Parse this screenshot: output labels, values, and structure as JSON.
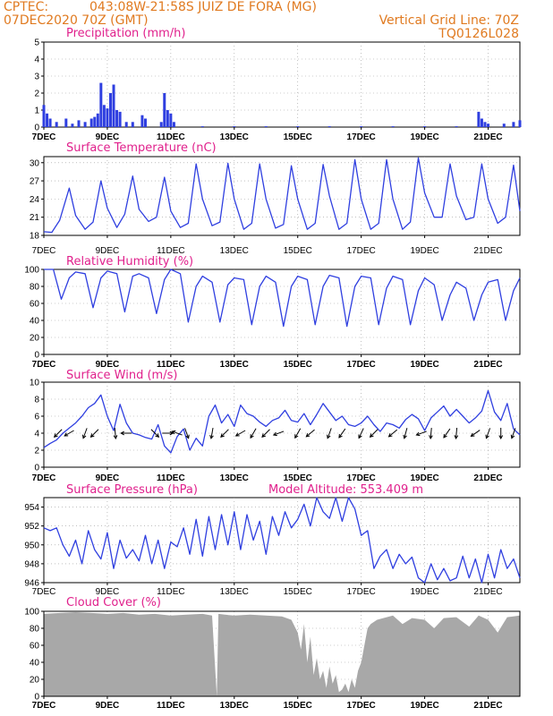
{
  "header": {
    "source": "CPTEC:",
    "location": "043:08W-21:58S  JUIZ DE FORA (MG)",
    "run": "07DEC2020 70Z (GMT)",
    "grid_line": "Vertical Grid Line: 70Z",
    "model": "TQ0126L028"
  },
  "colors": {
    "line": "#2f3fe0",
    "title": "#e0208c",
    "header": "#e07a20",
    "cloud": "#a8a8a8",
    "grid": "#999999"
  },
  "x_ticks": [
    "7DEC",
    "9DEC",
    "11DEC",
    "13DEC",
    "15DEC",
    "17DEC",
    "19DEC",
    "21DEC"
  ],
  "chart_data": [
    {
      "type": "bar",
      "title": "Precipitation (mm/h)",
      "ylim": [
        0,
        5
      ],
      "yticks": [
        0,
        1,
        2,
        3,
        4,
        5
      ],
      "x": [
        7.0,
        7.1,
        7.2,
        7.4,
        7.7,
        7.9,
        8.1,
        8.3,
        8.5,
        8.6,
        8.7,
        8.8,
        8.9,
        9.0,
        9.1,
        9.2,
        9.3,
        9.4,
        9.6,
        9.8,
        10.1,
        10.2,
        10.7,
        10.8,
        10.9,
        11.0,
        11.1,
        12.0,
        13.0,
        14.0,
        15.0,
        16.0,
        17.0,
        18.0,
        19.0,
        20.0,
        20.7,
        20.8,
        20.9,
        21.0,
        21.5,
        21.8,
        22.0
      ],
      "values": [
        1.3,
        0.8,
        0.5,
        0.3,
        0.5,
        0.2,
        0.4,
        0.3,
        0.5,
        0.6,
        0.8,
        2.6,
        1.3,
        1.1,
        2.0,
        2.5,
        1.0,
        0.9,
        0.3,
        0.3,
        0.7,
        0.5,
        0.3,
        2.0,
        1.0,
        0.8,
        0.3,
        0.05,
        0.05,
        0.05,
        0.05,
        0.05,
        0.05,
        0.05,
        0.05,
        0.05,
        0.9,
        0.5,
        0.3,
        0.2,
        0.2,
        0.3,
        0.4
      ]
    },
    {
      "type": "line",
      "title": "Surface Temperature (nC)",
      "ylim": [
        18,
        31
      ],
      "yticks": [
        18,
        21,
        24,
        27,
        30
      ],
      "x": [
        7.0,
        7.25,
        7.5,
        7.8,
        8.0,
        8.3,
        8.55,
        8.8,
        9.0,
        9.3,
        9.55,
        9.8,
        10.0,
        10.3,
        10.55,
        10.8,
        11.0,
        11.3,
        11.55,
        11.8,
        12.0,
        12.3,
        12.55,
        12.8,
        13.0,
        13.3,
        13.55,
        13.8,
        14.0,
        14.3,
        14.55,
        14.8,
        15.0,
        15.3,
        15.55,
        15.8,
        16.0,
        16.3,
        16.55,
        16.8,
        17.0,
        17.3,
        17.55,
        17.8,
        18.0,
        18.3,
        18.55,
        18.8,
        19.0,
        19.3,
        19.55,
        19.8,
        20.0,
        20.3,
        20.55,
        20.8,
        21.0,
        21.3,
        21.55,
        21.8,
        22.0
      ],
      "values": [
        18.6,
        18.5,
        20.5,
        25.8,
        21.3,
        19.0,
        20.2,
        27.0,
        22.5,
        19.3,
        21.5,
        27.8,
        22.3,
        20.3,
        21.0,
        27.6,
        22.0,
        19.3,
        20.0,
        29.8,
        24.0,
        19.6,
        20.2,
        29.9,
        24.0,
        19.0,
        20.0,
        29.8,
        24.0,
        19.2,
        19.8,
        29.5,
        24.0,
        19.0,
        20.0,
        29.7,
        24.5,
        19.0,
        20.0,
        30.5,
        24.0,
        19.0,
        20.0,
        30.5,
        24.0,
        19.0,
        20.2,
        30.8,
        25.0,
        21.0,
        21.0,
        29.8,
        24.5,
        20.6,
        21.0,
        29.8,
        24.0,
        20.0,
        21.0,
        29.6,
        22.0
      ]
    },
    {
      "type": "line",
      "title": "Relative Humidity (%)",
      "ylim": [
        0,
        100
      ],
      "yticks": [
        0,
        20,
        40,
        60,
        80,
        100
      ],
      "x": [
        7.0,
        7.3,
        7.55,
        7.8,
        8.0,
        8.3,
        8.55,
        8.8,
        9.0,
        9.3,
        9.55,
        9.8,
        10.0,
        10.3,
        10.55,
        10.8,
        11.0,
        11.3,
        11.55,
        11.8,
        12.0,
        12.3,
        12.55,
        12.8,
        13.0,
        13.3,
        13.55,
        13.8,
        14.0,
        14.3,
        14.55,
        14.8,
        15.0,
        15.3,
        15.55,
        15.8,
        16.0,
        16.3,
        16.55,
        16.8,
        17.0,
        17.3,
        17.55,
        17.8,
        18.0,
        18.3,
        18.55,
        18.8,
        19.0,
        19.3,
        19.55,
        19.8,
        20.0,
        20.3,
        20.55,
        20.8,
        21.0,
        21.3,
        21.55,
        21.8,
        22.0
      ],
      "values": [
        100,
        100,
        65,
        90,
        97,
        95,
        55,
        90,
        98,
        95,
        50,
        92,
        95,
        90,
        48,
        88,
        100,
        95,
        38,
        80,
        92,
        85,
        38,
        82,
        90,
        88,
        35,
        80,
        92,
        85,
        33,
        80,
        92,
        88,
        35,
        80,
        93,
        90,
        33,
        80,
        92,
        90,
        35,
        78,
        92,
        88,
        35,
        75,
        90,
        82,
        40,
        70,
        85,
        78,
        40,
        70,
        85,
        88,
        40,
        75,
        90
      ]
    },
    {
      "type": "line",
      "title": "Surface Wind (m/s)",
      "ylim": [
        0,
        10
      ],
      "yticks": [
        0,
        2,
        4,
        6,
        8,
        10
      ],
      "x": [
        7.0,
        7.2,
        7.4,
        7.6,
        7.8,
        8.0,
        8.2,
        8.4,
        8.6,
        8.8,
        9.0,
        9.2,
        9.4,
        9.6,
        9.8,
        10.0,
        10.2,
        10.4,
        10.6,
        10.8,
        11.0,
        11.2,
        11.4,
        11.6,
        11.8,
        12.0,
        12.2,
        12.4,
        12.6,
        12.8,
        13.0,
        13.2,
        13.4,
        13.6,
        13.8,
        14.0,
        14.2,
        14.4,
        14.6,
        14.8,
        15.0,
        15.2,
        15.4,
        15.6,
        15.8,
        16.0,
        16.2,
        16.4,
        16.6,
        16.8,
        17.0,
        17.2,
        17.4,
        17.6,
        17.8,
        18.0,
        18.2,
        18.4,
        18.6,
        18.8,
        19.0,
        19.2,
        19.4,
        19.6,
        19.8,
        20.0,
        20.2,
        20.4,
        20.6,
        20.8,
        21.0,
        21.2,
        21.4,
        21.6,
        21.8,
        22.0
      ],
      "values": [
        2.3,
        2.8,
        3.2,
        4.0,
        4.6,
        5.2,
        6.0,
        7.0,
        7.5,
        8.5,
        6.0,
        4.3,
        7.4,
        5.2,
        4.0,
        3.8,
        3.5,
        3.3,
        5.0,
        2.5,
        1.7,
        3.6,
        4.5,
        2.0,
        3.4,
        2.5,
        6.0,
        7.3,
        5.2,
        6.2,
        4.8,
        7.3,
        6.3,
        6.0,
        5.3,
        4.8,
        5.5,
        5.8,
        6.7,
        5.5,
        5.3,
        6.3,
        5.0,
        6.2,
        7.5,
        6.5,
        5.5,
        6.0,
        5.0,
        4.8,
        5.2,
        6.0,
        5.0,
        4.2,
        5.2,
        5.0,
        4.6,
        5.6,
        6.2,
        5.7,
        4.3,
        5.8,
        6.5,
        7.2,
        6.0,
        6.8,
        6.0,
        5.2,
        5.8,
        6.6,
        9.0,
        6.5,
        5.5,
        7.5,
        4.5,
        3.8
      ],
      "arrows": [
        {
          "x": 7.45,
          "dir": 225
        },
        {
          "x": 7.8,
          "dir": 240
        },
        {
          "x": 8.3,
          "dir": 200
        },
        {
          "x": 8.6,
          "dir": 225
        },
        {
          "x": 9.25,
          "dir": 175
        },
        {
          "x": 9.6,
          "dir": 270
        },
        {
          "x": 10.5,
          "dir": 135
        },
        {
          "x": 10.9,
          "dir": 90
        },
        {
          "x": 11.2,
          "dir": 290
        },
        {
          "x": 11.5,
          "dir": 160
        },
        {
          "x": 12.3,
          "dir": 190
        },
        {
          "x": 12.7,
          "dir": 225
        },
        {
          "x": 13.2,
          "dir": 240
        },
        {
          "x": 13.6,
          "dir": 210
        },
        {
          "x": 14.0,
          "dir": 225
        },
        {
          "x": 14.4,
          "dir": 250
        },
        {
          "x": 15.0,
          "dir": 210
        },
        {
          "x": 15.4,
          "dir": 230
        },
        {
          "x": 16.0,
          "dir": 200
        },
        {
          "x": 16.4,
          "dir": 215
        },
        {
          "x": 17.0,
          "dir": 205
        },
        {
          "x": 17.4,
          "dir": 225
        },
        {
          "x": 18.0,
          "dir": 230
        },
        {
          "x": 18.4,
          "dir": 195
        },
        {
          "x": 18.9,
          "dir": 250
        },
        {
          "x": 19.2,
          "dir": 185
        },
        {
          "x": 19.7,
          "dir": 215
        },
        {
          "x": 20.0,
          "dir": 185
        },
        {
          "x": 20.6,
          "dir": 235
        },
        {
          "x": 21.0,
          "dir": 200
        },
        {
          "x": 21.4,
          "dir": 180
        },
        {
          "x": 21.8,
          "dir": 200
        }
      ]
    },
    {
      "type": "line",
      "title": "Surface Pressure (hPa)",
      "subtitle": "Model Altitude: 553.409  m",
      "ylim": [
        946,
        955
      ],
      "yticks": [
        946,
        948,
        950,
        952,
        954
      ],
      "x": [
        7.0,
        7.2,
        7.4,
        7.6,
        7.8,
        8.0,
        8.2,
        8.4,
        8.6,
        8.8,
        9.0,
        9.2,
        9.4,
        9.6,
        9.8,
        10.0,
        10.2,
        10.4,
        10.6,
        10.8,
        11.0,
        11.2,
        11.4,
        11.6,
        11.8,
        12.0,
        12.2,
        12.4,
        12.6,
        12.8,
        13.0,
        13.2,
        13.4,
        13.6,
        13.8,
        14.0,
        14.2,
        14.4,
        14.6,
        14.8,
        15.0,
        15.2,
        15.4,
        15.6,
        15.8,
        16.0,
        16.2,
        16.4,
        16.6,
        16.8,
        17.0,
        17.2,
        17.4,
        17.6,
        17.8,
        18.0,
        18.2,
        18.4,
        18.6,
        18.8,
        19.0,
        19.2,
        19.4,
        19.6,
        19.8,
        20.0,
        20.2,
        20.4,
        20.6,
        20.8,
        21.0,
        21.2,
        21.4,
        21.6,
        21.8,
        22.0
      ],
      "values": [
        951.8,
        951.5,
        951.8,
        950.0,
        948.8,
        950.5,
        948.0,
        951.5,
        949.5,
        948.5,
        951.3,
        947.5,
        950.5,
        948.6,
        949.5,
        948.3,
        951.0,
        948.0,
        950.5,
        947.5,
        950.3,
        949.8,
        951.8,
        949.0,
        952.7,
        948.8,
        953.0,
        949.5,
        953.2,
        950.0,
        953.5,
        949.5,
        953.2,
        950.5,
        952.5,
        949.0,
        953.0,
        951.0,
        953.5,
        951.8,
        952.7,
        954.3,
        952.0,
        955.0,
        953.5,
        952.8,
        955.0,
        952.5,
        955.0,
        953.8,
        951.0,
        951.5,
        947.5,
        948.8,
        949.5,
        947.5,
        949.0,
        948.0,
        948.7,
        946.5,
        946.0,
        948.0,
        946.3,
        947.5,
        946.2,
        946.5,
        948.8,
        946.5,
        948.5,
        946.0,
        949.0,
        946.5,
        949.5,
        947.5,
        948.5,
        946.5
      ]
    },
    {
      "type": "area",
      "title": "Cloud Cover (%)",
      "ylim": [
        0,
        100
      ],
      "yticks": [
        0,
        20,
        40,
        60,
        80,
        100
      ],
      "x": [
        7.0,
        7.5,
        8.0,
        8.5,
        9.0,
        9.5,
        10.0,
        10.5,
        11.0,
        11.5,
        12.0,
        12.3,
        12.45,
        12.5,
        12.7,
        13.0,
        13.5,
        14.0,
        14.5,
        14.8,
        15.0,
        15.1,
        15.2,
        15.3,
        15.4,
        15.5,
        15.6,
        15.7,
        15.8,
        15.9,
        16.0,
        16.1,
        16.2,
        16.3,
        16.4,
        16.5,
        16.6,
        16.7,
        16.8,
        16.9,
        17.0,
        17.1,
        17.2,
        17.3,
        17.5,
        18.0,
        18.3,
        18.6,
        19.0,
        19.3,
        19.6,
        20.0,
        20.4,
        20.7,
        21.0,
        21.3,
        21.6,
        22.0
      ],
      "values": [
        97,
        98,
        99,
        98,
        97,
        98,
        96,
        97,
        95,
        96,
        97,
        95,
        0,
        97,
        96,
        95,
        96,
        95,
        94,
        90,
        75,
        55,
        85,
        40,
        70,
        25,
        45,
        20,
        30,
        10,
        35,
        15,
        25,
        5,
        8,
        15,
        5,
        20,
        10,
        30,
        40,
        60,
        80,
        85,
        90,
        95,
        85,
        92,
        90,
        80,
        92,
        93,
        82,
        95,
        90,
        75,
        93,
        95
      ]
    }
  ]
}
